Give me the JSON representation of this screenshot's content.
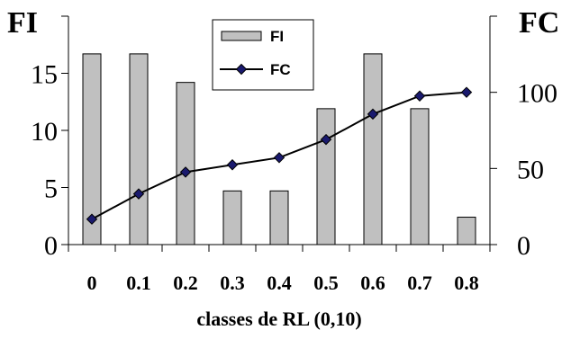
{
  "chart_data": {
    "type": "bar",
    "categories": [
      "0",
      "0.1",
      "0.2",
      "0.3",
      "0.4",
      "0.5",
      "0.6",
      "0.7",
      "0.8"
    ],
    "series": [
      {
        "name": "FI",
        "type": "bar",
        "axis": "left",
        "values": [
          16.7,
          16.7,
          14.2,
          4.7,
          4.7,
          11.9,
          16.7,
          11.9,
          2.4
        ]
      },
      {
        "name": "FC",
        "type": "line",
        "axis": "right",
        "values": [
          16.7,
          33.3,
          47.6,
          52.4,
          57.1,
          69.0,
          85.7,
          97.6,
          100.0
        ]
      }
    ],
    "xlabel": "classes de RL (0,10)",
    "ylabel": "FI",
    "y2label": "FC",
    "ylim": [
      0,
      20
    ],
    "y2lim": [
      0,
      150
    ],
    "yticks": [
      "0",
      "5",
      "10",
      "15"
    ],
    "y2ticks": [
      "0",
      "50",
      "100"
    ],
    "grid": false,
    "legend_placement": "top-center",
    "colors": {
      "bar_fill": "#c0c0c0",
      "bar_stroke": "#000000",
      "line": "#000000",
      "marker": "#1a1a6e"
    }
  }
}
